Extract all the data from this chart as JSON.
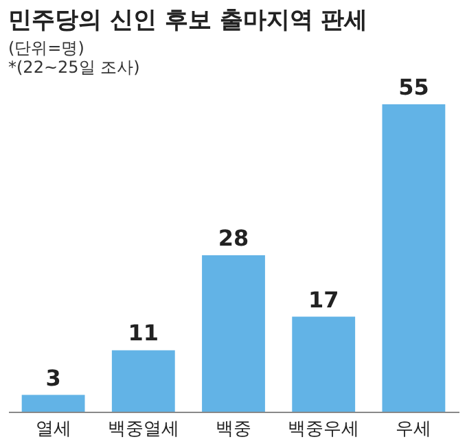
{
  "chart_data": {
    "type": "bar",
    "title": "민주당의 신인 후보 출마지역 판세",
    "subtitle": "(단위=명)",
    "annotations": [
      "*(22~25일 조사)"
    ],
    "categories": [
      "열세",
      "백중열세",
      "백중",
      "백중우세",
      "우세"
    ],
    "values": [
      3,
      11,
      28,
      17,
      55
    ],
    "color": "#62b3e6",
    "data_labels": true
  }
}
